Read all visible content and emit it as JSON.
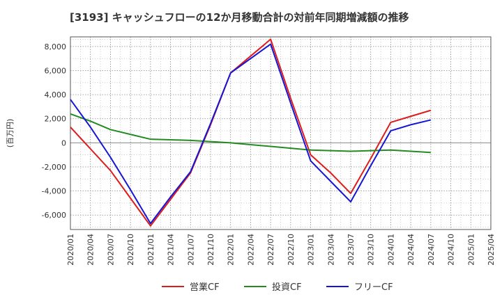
{
  "chart_data": {
    "type": "line",
    "title": "[3193]  キャッシュフローの12か月移動合計の対前年同期増減額の推移",
    "ylabel": "(百万円)",
    "xlabel": "",
    "ylim": [
      -7200,
      8800
    ],
    "yticks": [
      -6000,
      -4000,
      -2000,
      0,
      2000,
      4000,
      6000,
      8000
    ],
    "ytick_labels": [
      "-6,000",
      "-4,000",
      "-2,000",
      "0",
      "2,000",
      "4,000",
      "6,000",
      "8,000"
    ],
    "categories": [
      "2020/01",
      "2020/04",
      "2020/07",
      "2020/10",
      "2021/01",
      "2021/04",
      "2021/07",
      "2021/10",
      "2022/01",
      "2022/04",
      "2022/07",
      "2022/10",
      "2023/01",
      "2023/04",
      "2023/07",
      "2023/10",
      "2024/01",
      "2024/04",
      "2024/07",
      "2024/10",
      "2025/01",
      "2025/04"
    ],
    "grid": true,
    "legend_position": "bottom",
    "series": [
      {
        "name": "営業CF",
        "color": "#dd1c1c",
        "values": [
          1300,
          -500,
          -2300,
          -4600,
          -6900,
          -4700,
          -2500,
          1500,
          5800,
          7200,
          8600,
          3700,
          -1000,
          -2500,
          -4200,
          -1300,
          1700,
          2200,
          2700,
          null,
          null,
          null
        ]
      },
      {
        "name": "投資CF",
        "color": "#228b22",
        "values": [
          2400,
          1800,
          1100,
          700,
          300,
          250,
          200,
          100,
          0,
          -150,
          -300,
          -450,
          -600,
          -650,
          -700,
          -650,
          -600,
          -700,
          -800,
          null,
          null,
          null
        ]
      },
      {
        "name": "フリーCF",
        "color": "#1515d6",
        "values": [
          3600,
          1300,
          -1200,
          -3900,
          -6700,
          -4500,
          -2400,
          1600,
          5800,
          7000,
          8200,
          3300,
          -1500,
          -3200,
          -4900,
          -1900,
          1000,
          1500,
          1900,
          null,
          null,
          null
        ]
      }
    ]
  }
}
